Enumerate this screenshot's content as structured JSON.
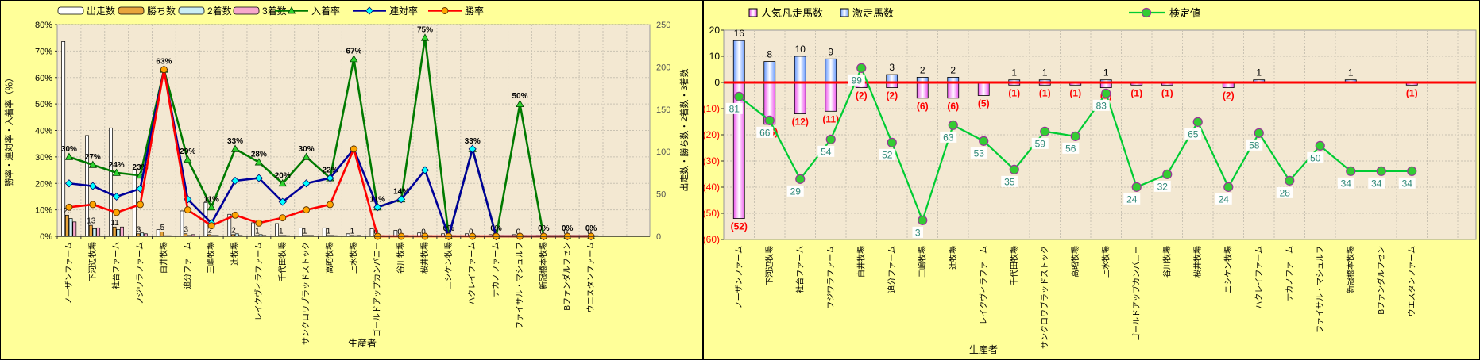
{
  "app": {
    "background_color": "#FFFF99",
    "plot_background_color": "#F3E8D2",
    "grid_color": "#C9C2B2",
    "zero_line_color": "#FF0000",
    "negative_label_color": "#FF0000",
    "kentei_label_color": "#2E8877"
  },
  "x_axis_title": "生産者",
  "categories": [
    "ノーザンファーム",
    "下河辺牧場",
    "社台ファーム",
    "フジワラファーム",
    "白井牧場",
    "追分ファーム",
    "三嶋牧場",
    "辻牧場",
    "レイクヴィラファーム",
    "千代田牧場",
    "サンクロワブラッドストック",
    "高昭牧場",
    "上水牧場",
    "ゴールドアップカンパニー",
    "谷川牧場",
    "桜井牧場",
    "ニシケン牧場",
    "ハクレイファーム",
    "ナカノファーム",
    "ファイサル・マシュルフ",
    "新冠橋本牧場",
    "Bファンダルフセン",
    "ウエスタンファーム"
  ],
  "left_chart": {
    "y_left_title": "勝率・連対率・入着率（％）",
    "y_left_tick_labels": [
      "80%",
      "70%",
      "60%",
      "50%",
      "40%",
      "30%",
      "20%",
      "10%",
      "0%"
    ],
    "y_right_title": "出走数・勝ち数・2着数・3着数",
    "y_right_tick_labels": [
      "250",
      "200",
      "150",
      "100",
      "50",
      "0"
    ],
    "x_title": "生産者",
    "legend": [
      {
        "label": "出走数",
        "type": "bar",
        "color": "#FFFFFF"
      },
      {
        "label": "勝ち数",
        "type": "bar",
        "color": "#E8A53C"
      },
      {
        "label": "2着数",
        "type": "bar",
        "color": "#CBEFF5"
      },
      {
        "label": "3着数",
        "type": "bar",
        "color": "#F8A8CC"
      },
      {
        "label": "入着率",
        "type": "line",
        "color": "#007A00",
        "marker": "triangle"
      },
      {
        "label": "連対率",
        "type": "line",
        "color": "#000099",
        "marker": "diamond"
      },
      {
        "label": "勝率",
        "type": "line",
        "color": "#FF0000",
        "marker": "circle"
      }
    ]
  },
  "right_chart": {
    "y_tick_labels": [
      "20",
      "10",
      "0",
      "(10)",
      "(20)",
      "(30)",
      "(40)",
      "(50)",
      "(60)"
    ],
    "x_title": "生産者",
    "legend": [
      {
        "label": "人気凡走馬数",
        "type": "bar",
        "color": "#EE55EE"
      },
      {
        "label": "激走馬数",
        "type": "bar",
        "color": "#5588EE"
      },
      {
        "label": "検定値",
        "type": "line",
        "color": "#00CC33"
      }
    ]
  },
  "chart_data": [
    {
      "id": "breeder-performance-chart",
      "type": "bar+line",
      "title": "",
      "xlabel": "生産者",
      "ylabel_left": "勝率・連対率・入着率（％）",
      "ylabel_right": "出走数・勝ち数・2着数・3着数",
      "ylim_left": [
        0,
        80
      ],
      "ylim_right": [
        0,
        250
      ],
      "grid": true,
      "legend_position": "top",
      "categories": [
        "ノーザンファーム",
        "下河辺牧場",
        "社台ファーム",
        "フジワラファーム",
        "白井牧場",
        "追分ファーム",
        "三嶋牧場",
        "辻牧場",
        "レイクヴィラファーム",
        "千代田牧場",
        "サンクロワブラッドストック",
        "高昭牧場",
        "上水牧場",
        "ゴールドアップカンパニー",
        "谷川牧場",
        "桜井牧場",
        "ニシケン牧場",
        "ハクレイファーム",
        "ナカノファーム",
        "ファイサル・マシュルフ",
        "新冠橋本牧場",
        "Bファンダルフセン",
        "ウエスタンファーム"
      ],
      "series": [
        {
          "key": "starts",
          "name": "出走数",
          "type": "bar",
          "axis": "right",
          "color": "#FFFFFF",
          "values": [
            230,
            119,
            128,
            79,
            8,
            30,
            40,
            26,
            16,
            15,
            10,
            10,
            3,
            9,
            7,
            4,
            3,
            3,
            2,
            2,
            1,
            1,
            1
          ]
        },
        {
          "key": "wins",
          "name": "勝ち数",
          "type": "bar",
          "axis": "right",
          "color": "#E8A53C",
          "values": [
            25,
            13,
            11,
            3,
            5,
            3,
            2,
            2,
            1,
            1,
            1,
            1,
            1,
            0,
            0,
            0,
            0,
            0,
            0,
            0,
            0,
            0,
            0
          ],
          "labels": [
            "25",
            "13",
            "11",
            "3",
            "5",
            "3",
            "2",
            "2",
            "1",
            "1",
            "1",
            "1",
            "1",
            "0",
            "0",
            "0",
            "0",
            "0",
            "0",
            "0",
            "0",
            "0",
            "0"
          ]
        },
        {
          "key": "seconds",
          "name": "2着数",
          "type": "bar",
          "axis": "right",
          "color": "#CBEFF5",
          "values": [
            21,
            9,
            8,
            4,
            0,
            1,
            1,
            3,
            2,
            1,
            1,
            1,
            0,
            1,
            0,
            0,
            0,
            1,
            0,
            0,
            0,
            0,
            0
          ]
        },
        {
          "key": "thirds",
          "name": "3着数",
          "type": "bar",
          "axis": "right",
          "color": "#F8A8CC",
          "values": [
            17,
            10,
            11,
            3,
            0,
            2,
            1,
            1,
            1,
            0,
            1,
            0,
            1,
            0,
            1,
            0,
            0,
            0,
            0,
            0,
            0,
            0,
            0
          ]
        },
        {
          "key": "place-rate",
          "name": "入着率",
          "type": "line",
          "axis": "left",
          "color": "#007A00",
          "marker": "triangle",
          "marker_fill": "#2FD32F",
          "values": [
            30,
            27,
            24,
            23,
            63,
            29,
            11,
            33,
            28,
            20,
            30,
            22,
            67,
            11,
            14,
            75,
            0,
            33,
            0,
            50,
            0,
            0,
            0
          ],
          "labels": [
            "30%",
            "27%",
            "24%",
            "23%",
            "63%",
            "29%",
            "11%",
            "33%",
            "28%",
            "20%",
            "30%",
            "22%",
            "67%",
            "11%",
            "14%",
            "75%",
            "0%",
            "33%",
            "0%",
            "50%",
            "0%",
            "0%",
            "0%"
          ]
        },
        {
          "key": "quinella-rate",
          "name": "連対率",
          "type": "line",
          "axis": "left",
          "color": "#000099",
          "marker": "diamond",
          "marker_fill": "#00FFFF",
          "values": [
            20,
            19,
            15,
            18,
            63,
            14,
            5,
            21,
            22,
            13,
            20,
            22,
            33,
            11,
            14,
            25,
            0,
            33,
            0,
            0,
            0,
            0,
            0
          ]
        },
        {
          "key": "win-rate",
          "name": "勝率",
          "type": "line",
          "axis": "left",
          "color": "#FF0000",
          "marker": "circle",
          "marker_fill": "#FFA500",
          "values": [
            11,
            12,
            9,
            12,
            63,
            10,
            4,
            8,
            5,
            7,
            10,
            12,
            33,
            0,
            0,
            0,
            0,
            0,
            0,
            0,
            0,
            0,
            0
          ]
        }
      ]
    },
    {
      "id": "burst-flop-chart",
      "type": "bar+line",
      "title": "",
      "xlabel": "生産者",
      "ylim": [
        -60,
        20
      ],
      "ytick_labels": [
        "20",
        "10",
        "0",
        "(10)",
        "(20)",
        "(30)",
        "(40)",
        "(50)",
        "(60)"
      ],
      "grid": true,
      "zero_line": true,
      "categories": [
        "ノーザンファーム",
        "下河辺牧場",
        "社台ファーム",
        "フジワラファーム",
        "白井牧場",
        "追分ファーム",
        "三嶋牧場",
        "辻牧場",
        "レイクヴィラファーム",
        "千代田牧場",
        "サンクロワブラッドストック",
        "高昭牧場",
        "上水牧場",
        "ゴールドアップカンパニー",
        "谷川牧場",
        "桜井牧場",
        "ニシケン牧場",
        "ハクレイファーム",
        "ナカノファーム",
        "ファイサル・マシュルフ",
        "新冠橋本牧場",
        "Bファンダルフセン",
        "ウエスタンファーム"
      ],
      "series": [
        {
          "key": "popular-flop",
          "name": "人気凡走馬数",
          "type": "bar",
          "color": "#EE55EE",
          "values": [
            -52,
            -16,
            -12,
            -11,
            -2,
            -2,
            -6,
            -6,
            -5,
            -1,
            -1,
            -1,
            -2,
            -1,
            -1,
            0,
            -2,
            0,
            0,
            0,
            0,
            0,
            -1
          ],
          "labels": [
            "(52)",
            "(16)",
            "(12)",
            "(11)",
            "(2)",
            "(2)",
            "(6)",
            "(6)",
            "(5)",
            "(1)",
            "(1)",
            "(1)",
            "(2)",
            "(1)",
            "(1)",
            "",
            "(2)",
            "",
            "",
            "",
            "",
            "",
            "(1)"
          ]
        },
        {
          "key": "burst",
          "name": "激走馬数",
          "type": "bar",
          "color": "#5588EE",
          "values": [
            16,
            8,
            10,
            9,
            0,
            3,
            2,
            2,
            0,
            1,
            1,
            0,
            1,
            0,
            0,
            0,
            0,
            1,
            0,
            0,
            1,
            0,
            0
          ],
          "labels": [
            "16",
            "8",
            "10",
            "9",
            "",
            "3",
            "2",
            "2",
            "",
            "1",
            "1",
            "",
            "1",
            "",
            "",
            "",
            "",
            "1",
            "",
            "",
            "1",
            "",
            ""
          ]
        },
        {
          "key": "kentei",
          "name": "検定値",
          "type": "line",
          "color": "#00CC33",
          "marker": "circle",
          "marker_fill": "#33CC33",
          "marker_stroke": "#993399",
          "values": [
            81,
            66,
            29,
            54,
            99,
            52,
            3,
            63,
            53,
            35,
            59,
            56,
            83,
            24,
            32,
            65,
            24,
            58,
            28,
            50,
            34,
            34,
            34
          ],
          "labels": [
            "81",
            "66",
            "29",
            "54",
            "99",
            "52",
            "3",
            "63",
            "53",
            "35",
            "59",
            "56",
            "83",
            "24",
            "32",
            "65",
            "24",
            "58",
            "28",
            "50",
            "34",
            "34",
            "34"
          ],
          "secondary_scale": {
            "unit_per_value": 0.606,
            "unit_offset": -54.5
          }
        }
      ]
    }
  ]
}
